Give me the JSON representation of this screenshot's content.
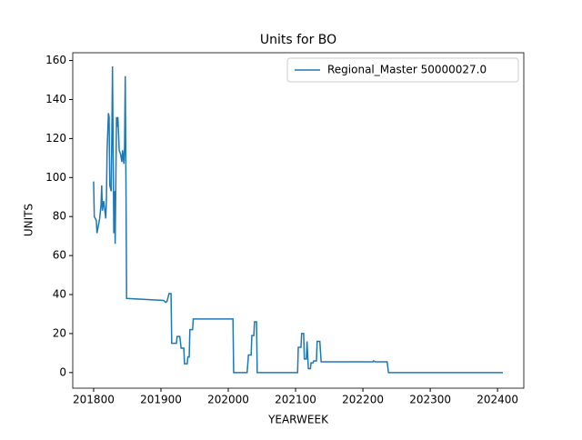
{
  "chart_data": {
    "type": "line",
    "title": "Units for BO",
    "xlabel": "YEARWEEK",
    "ylabel": "UNITS",
    "legend": "upper right",
    "x": [
      201800,
      201801,
      201804,
      201805,
      201809,
      201811,
      201812,
      201813,
      201815,
      201818,
      201819,
      201820,
      201822,
      201823,
      201824,
      201826,
      201827,
      201828,
      201830,
      201831,
      201832,
      201834,
      201835,
      201836,
      201838,
      201840,
      201842,
      201843,
      201845,
      201846,
      201847,
      201848,
      201849,
      201904,
      201907,
      201909,
      201912,
      201915,
      201916,
      201923,
      201924,
      201928,
      201930,
      201934,
      201935,
      201939,
      201940,
      201942,
      201943,
      201947,
      201948,
      202007,
      202008,
      202028,
      202030,
      202034,
      202035,
      202038,
      202039,
      202042,
      202043,
      202103,
      202104,
      202108,
      202109,
      202112,
      202113,
      202116,
      202117,
      202119,
      202122,
      202123,
      202126,
      202127,
      202131,
      202132,
      202136,
      202138,
      202215,
      202216,
      202218,
      202236,
      202238,
      202408
    ],
    "series": [
      {
        "name": "Regional_Master 50000027.0",
        "color": "#1f77b4",
        "values": [
          98,
          80,
          78,
          71.5,
          79,
          86,
          96,
          83,
          88,
          79,
          88,
          114,
          133,
          131,
          96,
          93,
          119,
          157,
          71.5,
          93,
          66,
          131,
          126,
          131,
          114,
          112,
          108,
          114,
          107,
          116,
          152,
          100,
          38,
          37,
          36,
          36.5,
          40.5,
          40.5,
          15,
          15,
          18.5,
          18.5,
          12.5,
          12.5,
          4.5,
          4.5,
          8,
          8,
          22,
          22,
          27.5,
          27.5,
          0,
          0,
          9,
          9,
          19,
          19,
          26,
          26,
          0,
          0,
          13,
          13,
          20,
          20,
          7,
          7,
          16,
          2,
          2,
          5,
          5,
          6,
          6,
          16,
          16,
          5.5,
          5.5,
          6,
          5.5,
          5.5,
          0,
          0
        ]
      }
    ],
    "xlim": [
      201769,
      202439
    ],
    "ylim": [
      -8,
      164
    ],
    "xticks": [
      201800,
      201900,
      202000,
      202100,
      202200,
      202300,
      202400
    ],
    "yticks": [
      0,
      20,
      40,
      60,
      80,
      100,
      120,
      140,
      160
    ]
  }
}
